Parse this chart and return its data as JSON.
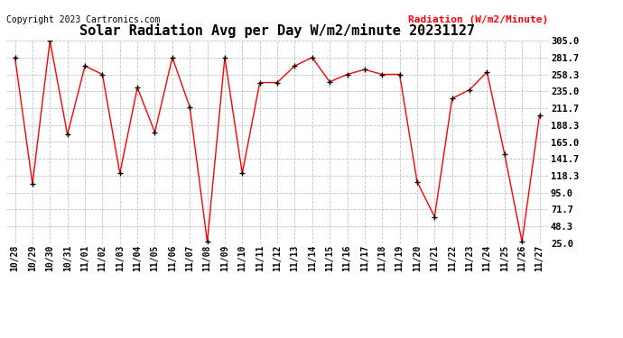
{
  "title": "Solar Radiation Avg per Day W/m2/minute 20231127",
  "copyright_text": "Copyright 2023 Cartronics.com",
  "legend_label": "Radiation (W/m2/Minute)",
  "dates": [
    "10/28",
    "10/29",
    "10/30",
    "10/31",
    "11/01",
    "11/02",
    "11/03",
    "11/04",
    "11/05",
    "11/06",
    "11/07",
    "11/08",
    "11/09",
    "11/10",
    "11/11",
    "11/12",
    "11/13",
    "11/14",
    "11/15",
    "11/16",
    "11/17",
    "11/18",
    "11/19",
    "11/20",
    "11/21",
    "11/22",
    "11/23",
    "11/24",
    "11/25",
    "11/26",
    "11/27"
  ],
  "values": [
    281.7,
    107.0,
    305.0,
    175.0,
    270.0,
    258.3,
    121.7,
    240.0,
    178.3,
    281.7,
    213.0,
    27.0,
    281.7,
    121.7,
    247.0,
    247.0,
    270.0,
    281.7,
    248.0,
    258.3,
    265.0,
    258.3,
    258.3,
    110.0,
    61.7,
    225.0,
    237.0,
    261.7,
    148.3,
    27.0,
    201.7
  ],
  "line_color": "#FF0000",
  "marker_color": "#000000",
  "background_color": "#FFFFFF",
  "grid_color": "#BBBBBB",
  "title_fontsize": 11,
  "ymin": 25.0,
  "ymax": 305.0,
  "yticks": [
    25.0,
    48.3,
    71.7,
    95.0,
    118.3,
    141.7,
    165.0,
    188.3,
    211.7,
    235.0,
    258.3,
    281.7,
    305.0
  ],
  "copyright_color": "#000000",
  "legend_color": "#FF0000"
}
